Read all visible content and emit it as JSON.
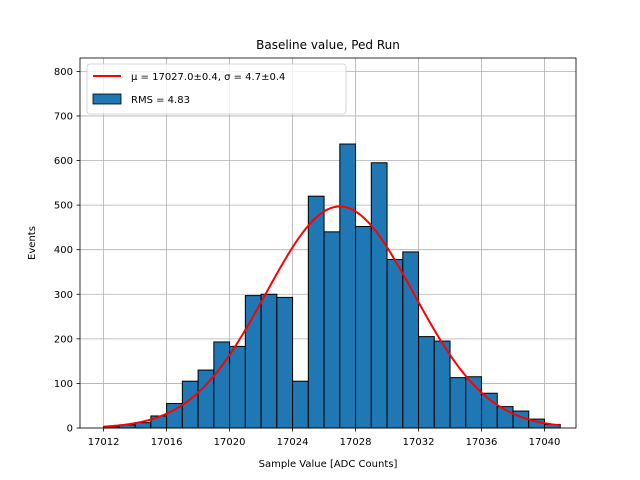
{
  "chart_data": {
    "type": "bar",
    "title": "Baseline value, Ped Run",
    "xlabel": "Sample Value [ADC Counts]",
    "ylabel": "Events",
    "xlim": [
      17010.5,
      17042
    ],
    "ylim": [
      0,
      830
    ],
    "xticks": [
      17012,
      17016,
      17020,
      17024,
      17028,
      17032,
      17036,
      17040
    ],
    "yticks": [
      0,
      100,
      200,
      300,
      400,
      500,
      600,
      700,
      800
    ],
    "grid": true,
    "legend_position": "top-left",
    "histogram": {
      "name": "RMS = 4.83",
      "color": "#1f77b4",
      "edgecolor": "#000000",
      "bin_width": 1,
      "bin_left_edges": [
        17012,
        17013,
        17014,
        17015,
        17016,
        17017,
        17018,
        17019,
        17020,
        17021,
        17022,
        17023,
        17024,
        17025,
        17026,
        17027,
        17028,
        17029,
        17030,
        17031,
        17032,
        17033,
        17034,
        17035,
        17036,
        17037,
        17038,
        17039,
        17040
      ],
      "counts": [
        3,
        7,
        12,
        27,
        55,
        105,
        130,
        193,
        183,
        297,
        300,
        293,
        105,
        520,
        440,
        637,
        452,
        595,
        378,
        395,
        205,
        195,
        113,
        115,
        78,
        48,
        38,
        20,
        8
      ]
    },
    "fit": {
      "name": "$\\mu = 17027.0$±0.4, $\\sigma = 4.7$±0.4",
      "label_parts": [
        "μ = 17027.0±0.4, ",
        "σ = 4.7±0.4"
      ],
      "color": "#ff0000",
      "mu": 17027.0,
      "sigma": 4.7,
      "amplitude": 497,
      "x_range": [
        17012,
        17041
      ]
    }
  }
}
